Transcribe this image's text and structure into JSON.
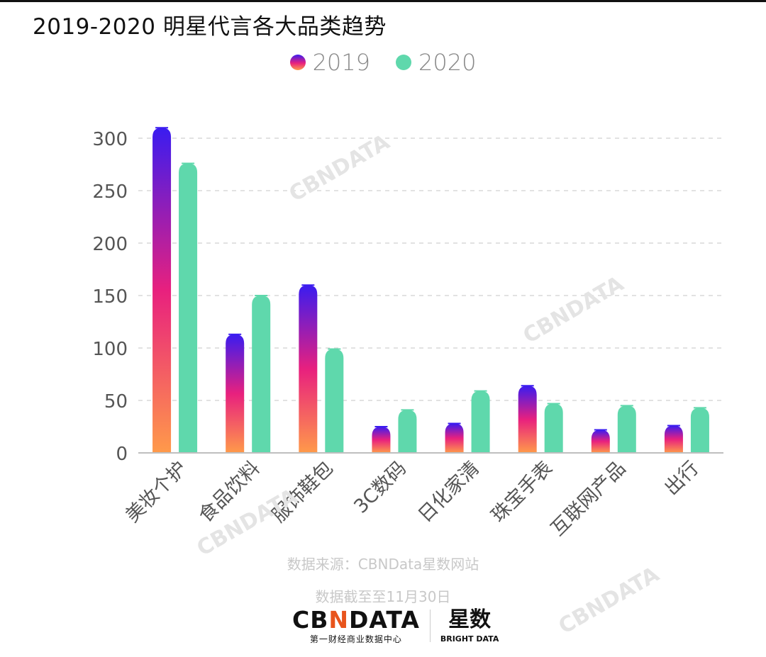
{
  "title": "2019-2020 明星代言各大品类趋势",
  "chart_data": {
    "type": "bar",
    "categories": [
      "美妆个护",
      "食品饮料",
      "服饰鞋包",
      "3C数码",
      "日化家清",
      "珠宝手表",
      "互联网产品",
      "出行"
    ],
    "series": [
      {
        "name": "2019",
        "values": [
          310,
          113,
          160,
          25,
          28,
          64,
          22,
          26
        ]
      },
      {
        "name": "2020",
        "values": [
          276,
          150,
          99,
          41,
          59,
          47,
          45,
          43
        ]
      }
    ],
    "yticks": [
      0,
      50,
      100,
      150,
      200,
      250,
      300
    ],
    "ylim": [
      0,
      320
    ],
    "grid": true,
    "legend_position": "top-center"
  },
  "colors": {
    "s2019_top": "#3a1cf0",
    "s2019_mid": "#e8207e",
    "s2019_bottom": "#ff9a4a",
    "s2020": "#5fd8ac",
    "grid": "#d9d9d9",
    "axis": "#bfbfbf",
    "tick_text": "#555555"
  },
  "footer": {
    "source": "数据来源：CBNData星数网站",
    "date_note": "数据截至至11月30日"
  },
  "logo": {
    "brand_prefix": "CB",
    "brand_accent": "N",
    "brand_suffix": "DATA",
    "brand_sub": "第一财经商业数据中心",
    "partner_cn": "星数",
    "partner_en": "BRIGHT DATA"
  },
  "watermark": "CBNDATA"
}
